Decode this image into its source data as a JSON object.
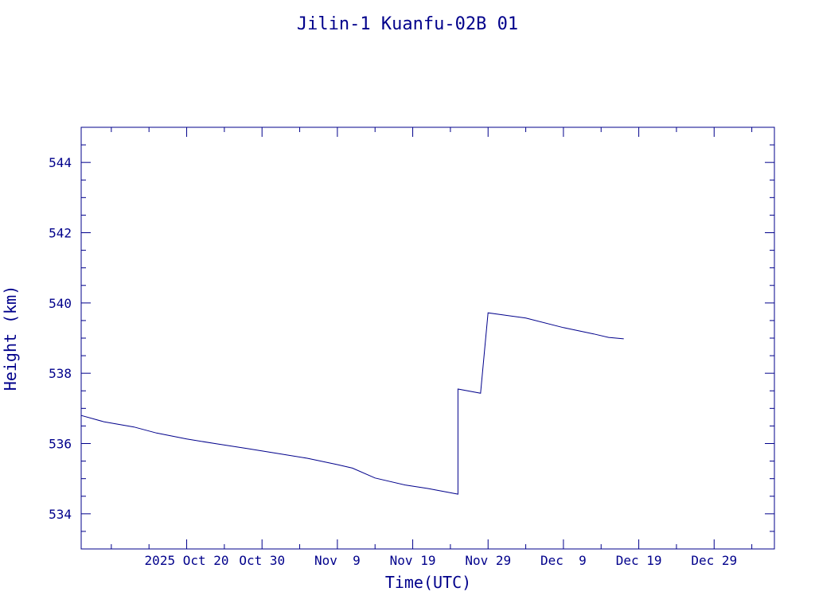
{
  "chart_data": {
    "type": "line",
    "title": "Jilin-1 Kuanfu-02B 01",
    "xlabel": "Time(UTC)",
    "ylabel": "Height (km)",
    "xlim": [
      "2025-10-06",
      "2026-01-06"
    ],
    "ylim": [
      533,
      545
    ],
    "x_ticks": [
      {
        "date": "2025-10-20",
        "label": "2025 Oct 20"
      },
      {
        "date": "2025-10-30",
        "label": "Oct 30"
      },
      {
        "date": "2025-11-09",
        "label": "Nov  9"
      },
      {
        "date": "2025-11-19",
        "label": "Nov 19"
      },
      {
        "date": "2025-11-29",
        "label": "Nov 29"
      },
      {
        "date": "2025-12-09",
        "label": "Dec  9"
      },
      {
        "date": "2025-12-19",
        "label": "Dec 19"
      },
      {
        "date": "2025-12-29",
        "label": "Dec 29"
      }
    ],
    "y_ticks": [
      534,
      536,
      538,
      540,
      542,
      544
    ],
    "grid": false,
    "colors": {
      "line": "#00008b",
      "text": "#00008b",
      "axes": "#00008b"
    },
    "series": [
      {
        "points": [
          [
            "2025-10-06",
            536.8
          ],
          [
            "2025-10-09",
            536.62
          ],
          [
            "2025-10-13",
            536.47
          ],
          [
            "2025-10-16",
            536.3
          ],
          [
            "2025-10-20",
            536.13
          ],
          [
            "2025-10-24",
            535.99
          ],
          [
            "2025-10-28",
            535.86
          ],
          [
            "2025-11-01",
            535.72
          ],
          [
            "2025-11-05",
            535.58
          ],
          [
            "2025-11-09",
            535.4
          ],
          [
            "2025-11-11",
            535.3
          ],
          [
            "2025-11-14",
            535.02
          ],
          [
            "2025-11-18",
            534.82
          ],
          [
            "2025-11-21",
            534.72
          ],
          [
            "2025-11-25",
            534.56
          ],
          [
            "2025-11-25",
            534.56
          ],
          [
            "2025-11-25",
            537.55
          ],
          [
            "2025-11-28",
            537.43
          ],
          [
            "2025-11-29",
            539.72
          ],
          [
            "2025-12-04",
            539.57
          ],
          [
            "2025-12-09",
            539.3
          ],
          [
            "2025-12-13",
            539.12
          ],
          [
            "2025-12-15",
            539.02
          ],
          [
            "2025-12-17",
            538.98
          ]
        ]
      }
    ]
  }
}
